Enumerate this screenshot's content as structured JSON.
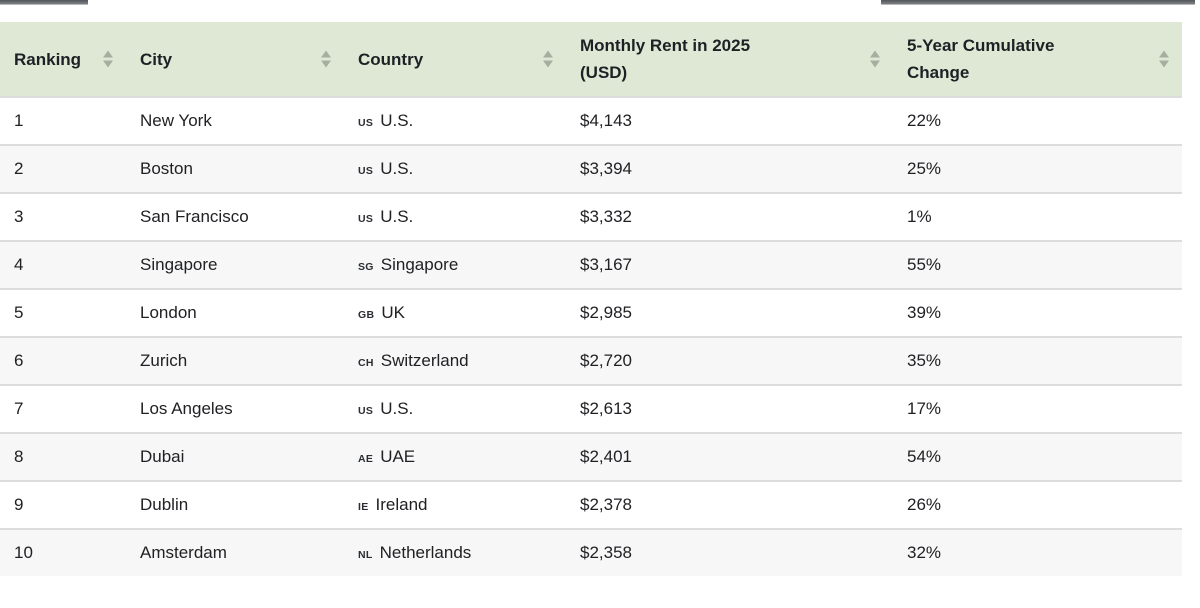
{
  "colors": {
    "header_bg": "#dfe8d5",
    "row_alt_bg": "#f7f7f7",
    "row_border": "#dcdcdc",
    "header_text": "#1d2125",
    "body_text": "#202124",
    "sort_arrow": "#a7ae9f",
    "top_bar": "#5b5f63"
  },
  "icons": {
    "sort": "sort-up-down-arrows"
  },
  "table": {
    "columns": [
      {
        "id": "ranking",
        "label": "Ranking",
        "label_lines": [
          "Ranking"
        ]
      },
      {
        "id": "city",
        "label": "City",
        "label_lines": [
          "City"
        ]
      },
      {
        "id": "country",
        "label": "Country",
        "label_lines": [
          "Country"
        ]
      },
      {
        "id": "rent",
        "label": "Monthly Rent in 2025 (USD)",
        "label_lines": [
          "Monthly Rent in 2025",
          "(USD)"
        ]
      },
      {
        "id": "change",
        "label": "5-Year Cumulative Change",
        "label_lines": [
          "5-Year Cumulative",
          "Change"
        ]
      }
    ],
    "rows": [
      {
        "rank": "1",
        "city": "New York",
        "country_code": "US",
        "country": "U.S.",
        "rent": "$4,143",
        "change": "22%"
      },
      {
        "rank": "2",
        "city": "Boston",
        "country_code": "US",
        "country": "U.S.",
        "rent": "$3,394",
        "change": "25%"
      },
      {
        "rank": "3",
        "city": "San Francisco",
        "country_code": "US",
        "country": "U.S.",
        "rent": "$3,332",
        "change": "1%"
      },
      {
        "rank": "4",
        "city": "Singapore",
        "country_code": "SG",
        "country": "Singapore",
        "rent": "$3,167",
        "change": "55%"
      },
      {
        "rank": "5",
        "city": "London",
        "country_code": "GB",
        "country": "UK",
        "rent": "$2,985",
        "change": "39%"
      },
      {
        "rank": "6",
        "city": "Zurich",
        "country_code": "CH",
        "country": "Switzerland",
        "rent": "$2,720",
        "change": "35%"
      },
      {
        "rank": "7",
        "city": "Los Angeles",
        "country_code": "US",
        "country": "U.S.",
        "rent": "$2,613",
        "change": "17%"
      },
      {
        "rank": "8",
        "city": "Dubai",
        "country_code": "AE",
        "country": "UAE",
        "rent": "$2,401",
        "change": "54%"
      },
      {
        "rank": "9",
        "city": "Dublin",
        "country_code": "IE",
        "country": "Ireland",
        "rent": "$2,378",
        "change": "26%"
      },
      {
        "rank": "10",
        "city": "Amsterdam",
        "country_code": "NL",
        "country": "Netherlands",
        "rent": "$2,358",
        "change": "32%"
      }
    ]
  },
  "chart_data": {
    "type": "table",
    "title": "",
    "columns": [
      "Ranking",
      "City",
      "Country",
      "Monthly Rent in 2025 (USD)",
      "5-Year Cumulative Change"
    ],
    "rows": [
      [
        "1",
        "New York",
        "U.S.",
        "$4,143",
        "22%"
      ],
      [
        "2",
        "Boston",
        "U.S.",
        "$3,394",
        "25%"
      ],
      [
        "3",
        "San Francisco",
        "U.S.",
        "$3,332",
        "1%"
      ],
      [
        "4",
        "Singapore",
        "Singapore",
        "$3,167",
        "55%"
      ],
      [
        "5",
        "London",
        "UK",
        "$2,985",
        "39%"
      ],
      [
        "6",
        "Zurich",
        "Switzerland",
        "$2,720",
        "35%"
      ],
      [
        "7",
        "Los Angeles",
        "U.S.",
        "$2,613",
        "17%"
      ],
      [
        "8",
        "Dubai",
        "UAE",
        "$2,401",
        "54%"
      ],
      [
        "9",
        "Dublin",
        "Ireland",
        "$2,378",
        "26%"
      ],
      [
        "10",
        "Amsterdam",
        "Netherlands",
        "$2,358",
        "32%"
      ]
    ],
    "rent_values_usd": [
      4143,
      3394,
      3332,
      3167,
      2985,
      2720,
      2613,
      2401,
      2378,
      2358
    ],
    "change_values_pct": [
      22,
      25,
      1,
      55,
      39,
      35,
      17,
      54,
      26,
      32
    ]
  }
}
